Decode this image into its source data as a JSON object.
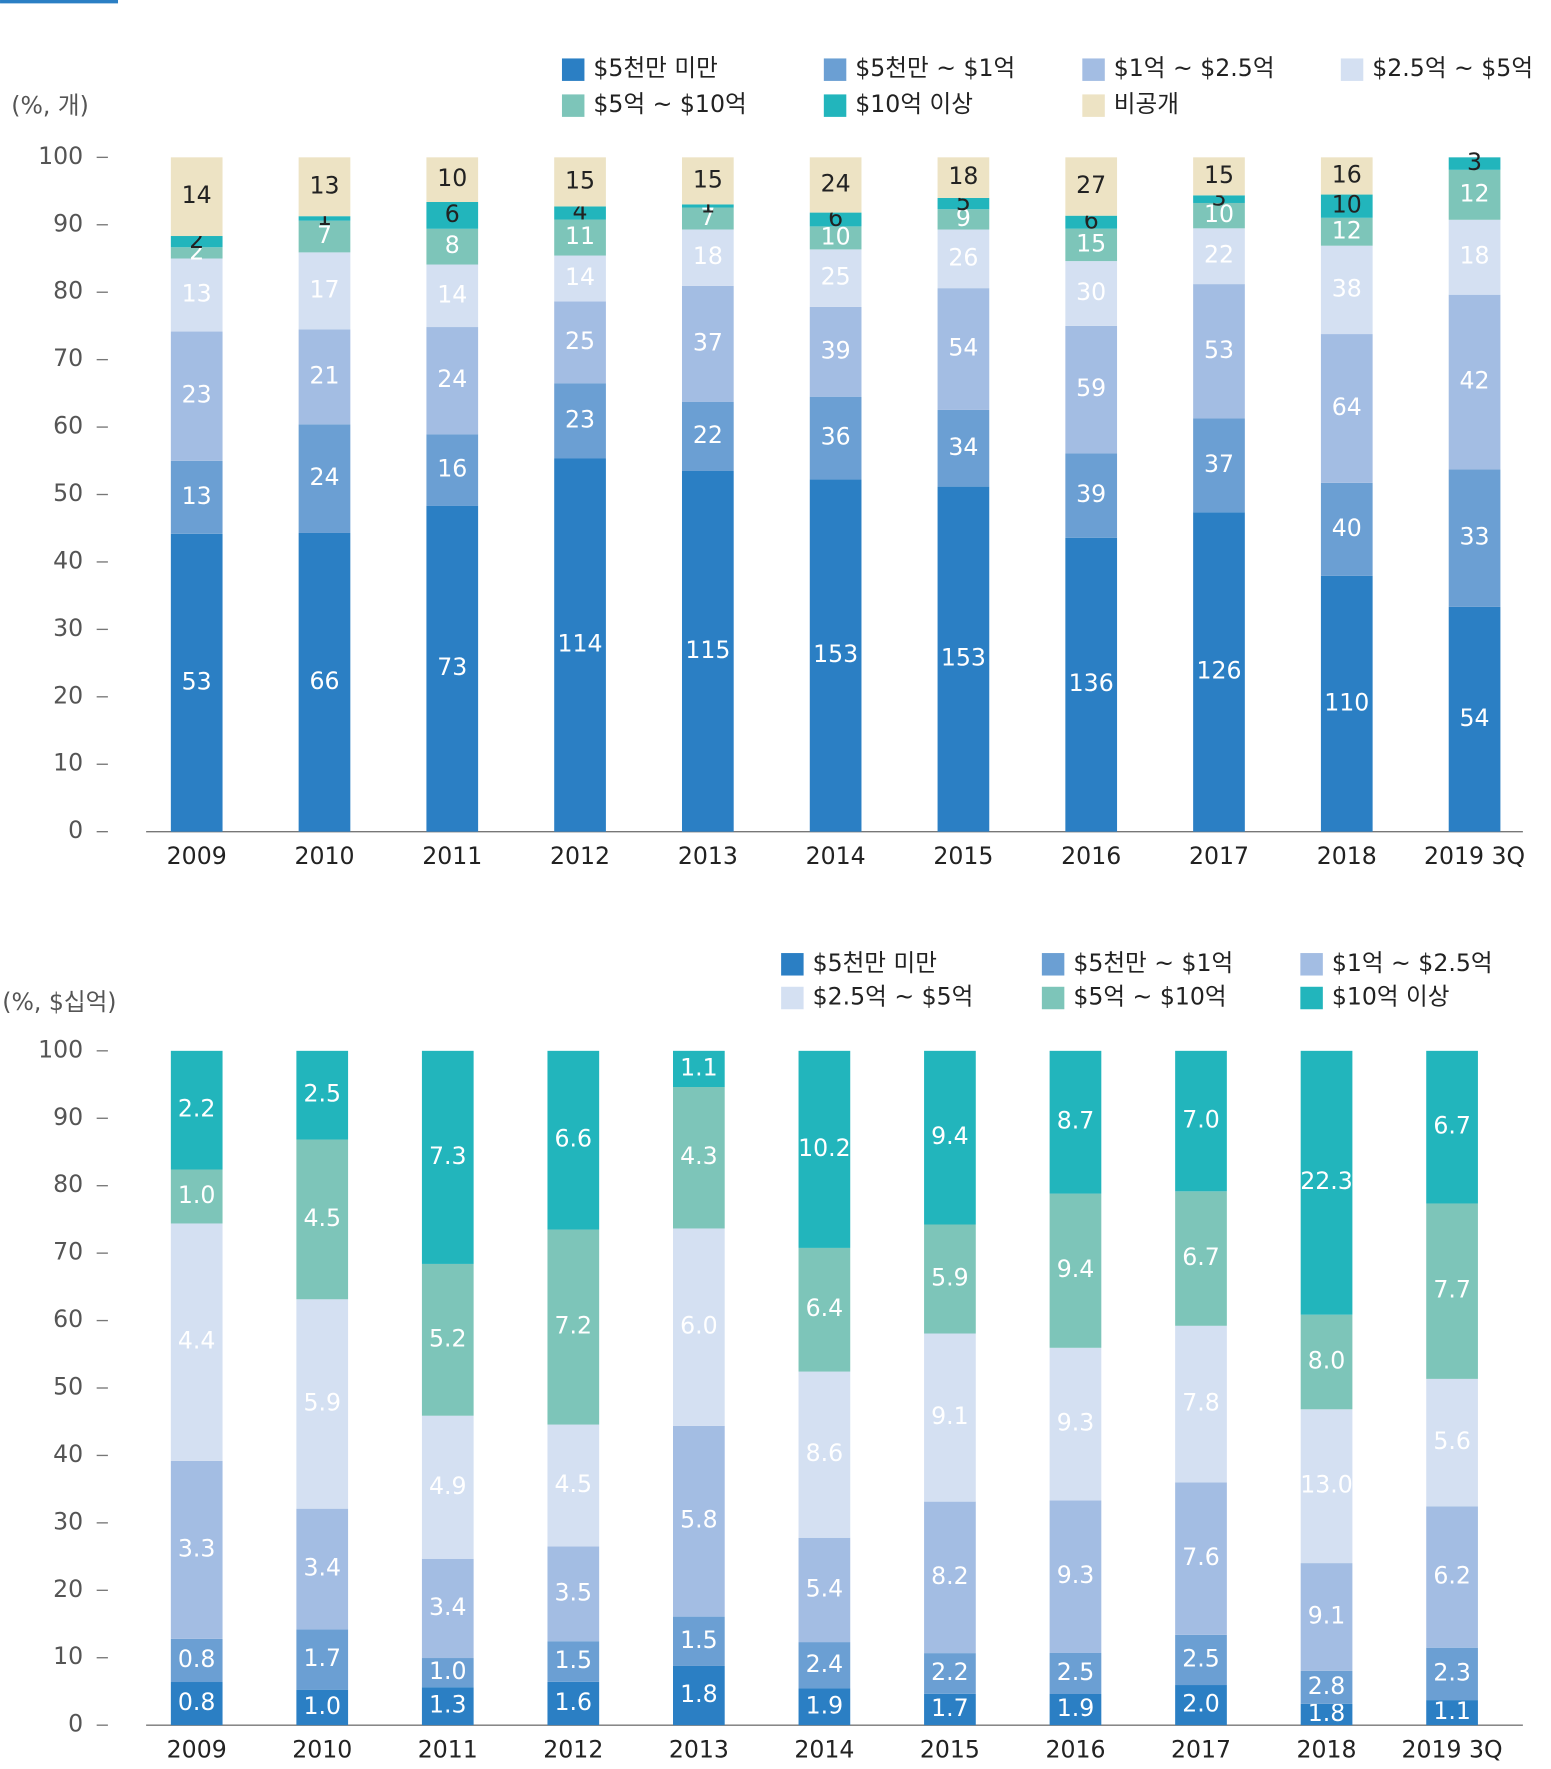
{
  "chart_data": [
    {
      "type": "bar",
      "stacked": "percent",
      "y_label": "(%, 개)",
      "categories": [
        "2009",
        "2010",
        "2011",
        "2012",
        "2013",
        "2014",
        "2015",
        "2016",
        "2017",
        "2018",
        "2019 3Q"
      ],
      "ylim": [
        0,
        100
      ],
      "yticks": [
        0,
        10,
        20,
        30,
        40,
        50,
        60,
        70,
        80,
        90,
        100
      ],
      "series": [
        {
          "name": "$5천만 미만",
          "color": "#2b7fc4",
          "label_color": "#ffffff",
          "values": [
            53,
            66,
            73,
            114,
            115,
            153,
            153,
            136,
            126,
            110,
            54
          ]
        },
        {
          "name": "$5천만 ~ $1억",
          "color": "#6b9fd3",
          "label_color": "#ffffff",
          "values": [
            13,
            24,
            16,
            23,
            22,
            36,
            34,
            39,
            37,
            40,
            33
          ]
        },
        {
          "name": "$1억 ~ $2.5억",
          "color": "#a3bde3",
          "label_color": "#ffffff",
          "values": [
            23,
            21,
            24,
            25,
            37,
            39,
            54,
            59,
            53,
            64,
            42
          ]
        },
        {
          "name": "$2.5억 ~ $5억",
          "color": "#d4e0f2",
          "label_color": "#ffffff",
          "values": [
            13,
            17,
            14,
            14,
            18,
            25,
            26,
            30,
            22,
            38,
            18
          ]
        },
        {
          "name": "$5억 ~ $10억",
          "color": "#7dc5b9",
          "label_color": "#ffffff",
          "values": [
            2,
            7,
            8,
            11,
            7,
            10,
            9,
            15,
            10,
            12,
            12
          ]
        },
        {
          "name": "$10억 이상",
          "color": "#22b5bc",
          "label_color": "#222222",
          "values": [
            2,
            1,
            6,
            4,
            1,
            6,
            5,
            6,
            3,
            10,
            3
          ]
        },
        {
          "name": "비공개",
          "color": "#ede3c4",
          "label_color": "#222222",
          "values": [
            14,
            13,
            10,
            15,
            15,
            24,
            18,
            27,
            15,
            16,
            null
          ]
        }
      ]
    },
    {
      "type": "bar",
      "stacked": "percent",
      "y_label": "(%, $십억)",
      "categories": [
        "2009",
        "2010",
        "2011",
        "2012",
        "2013",
        "2014",
        "2015",
        "2016",
        "2017",
        "2018",
        "2019 3Q"
      ],
      "ylim": [
        0,
        100
      ],
      "yticks": [
        0,
        10,
        20,
        30,
        40,
        50,
        60,
        70,
        80,
        90,
        100
      ],
      "series": [
        {
          "name": "$5천만 미만",
          "color": "#2b7fc4",
          "label_color": "#ffffff",
          "values": [
            0.8,
            1,
            1.3,
            1.6,
            1.8,
            1.9,
            1.7,
            1.9,
            2,
            1.8,
            1.1
          ],
          "value_labels": [
            "0.8",
            "1.0",
            "1.3",
            "1.6",
            "1.8",
            "1.9",
            "1.7",
            "1.9",
            "2.0",
            "1.8",
            "1.1"
          ]
        },
        {
          "name": "$5천만 ~ $1억",
          "color": "#6b9fd3",
          "label_color": "#ffffff",
          "values": [
            0.8,
            1.7,
            1,
            1.5,
            1.5,
            2.4,
            2.2,
            2.5,
            2.5,
            2.8,
            2.3
          ],
          "value_labels": [
            "0.8",
            "1.7",
            "1.0",
            "1.5",
            "1.5",
            "2.4",
            "2.2",
            "2.5",
            "2.5",
            "2.8",
            "2.3"
          ]
        },
        {
          "name": "$1억 ~ $2.5억",
          "color": "#a3bde3",
          "label_color": "#ffffff",
          "values": [
            3.3,
            3.4,
            3.4,
            3.5,
            5.8,
            5.4,
            8.2,
            9.3,
            7.6,
            9.1,
            6.2
          ],
          "value_labels": [
            "3.3",
            "3.4",
            "3.4",
            "3.5",
            "5.8",
            "5.4",
            "8.2",
            "9.3",
            "7.6",
            "9.1",
            "6.2"
          ]
        },
        {
          "name": "$2.5억 ~ $5억",
          "color": "#d4e0f2",
          "label_color": "#ffffff",
          "values": [
            4.4,
            5.9,
            4.9,
            4.5,
            6,
            8.6,
            9.1,
            9.3,
            7.8,
            13,
            5.6
          ],
          "value_labels": [
            "4.4",
            "5.9",
            "4.9",
            "4.5",
            "6.0",
            "8.6",
            "9.1",
            "9.3",
            "7.8",
            "13.0",
            "5.6"
          ]
        },
        {
          "name": "$5억 ~ $10억",
          "color": "#7dc5b9",
          "label_color": "#ffffff",
          "values": [
            1,
            4.5,
            5.2,
            7.2,
            4.3,
            6.4,
            5.9,
            9.4,
            6.7,
            8,
            7.7
          ],
          "value_labels": [
            "1.0",
            "4.5",
            "5.2",
            "7.2",
            "4.3",
            "6.4",
            "5.9",
            "9.4",
            "6.7",
            "8.0",
            "7.7"
          ]
        },
        {
          "name": "$10억 이상",
          "color": "#22b5bc",
          "label_color": "#ffffff",
          "values": [
            2.2,
            2.5,
            7.3,
            6.6,
            1.1,
            10.2,
            9.4,
            8.7,
            7,
            22.3,
            6.7
          ],
          "value_labels": [
            "2.2",
            "2.5",
            "7.3",
            "6.6",
            "1.1",
            "10.2",
            "9.4",
            "8.7",
            "7.0",
            "22.3",
            "6.7"
          ]
        }
      ]
    }
  ]
}
